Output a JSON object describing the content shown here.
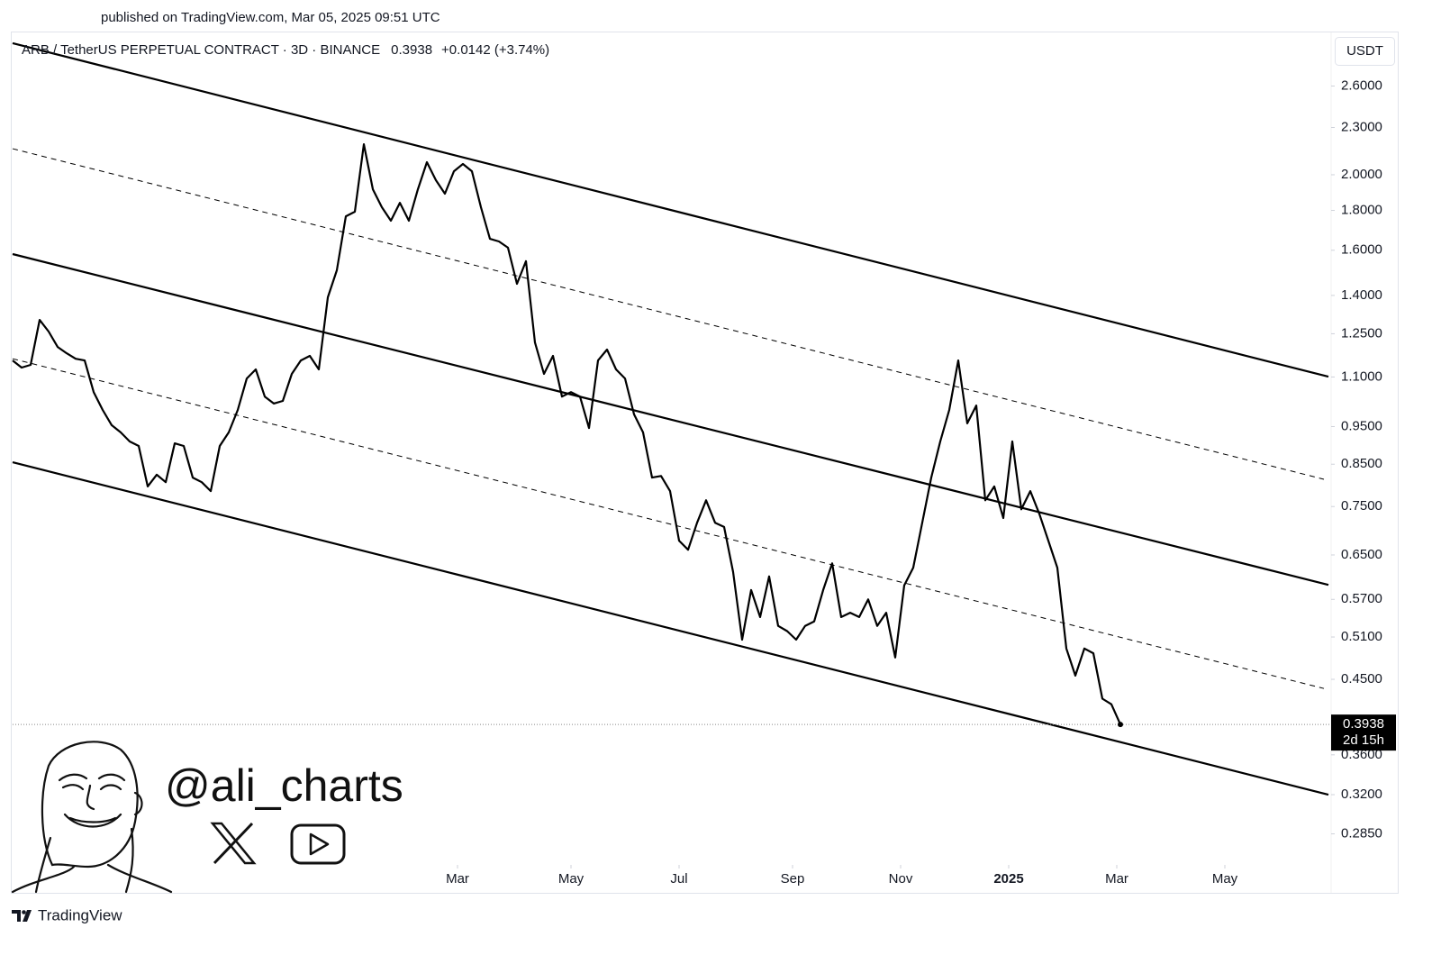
{
  "published": "published on TradingView.com, Mar 05, 2025 09:51 UTC",
  "footer": "TradingView",
  "watermark": "@ali_charts",
  "chart_data": {
    "type": "line",
    "title": "ARB / TetherUS PERPETUAL CONTRACT · 3D · BINANCE",
    "change_label": "+0.0142 (+3.74%)",
    "currency": "USDT",
    "countdown": "2d 15h",
    "log_scale": true,
    "grid": false,
    "color": "#000000",
    "xlim": [
      0,
      146.4
    ],
    "xticks": [
      {
        "value": 49.4,
        "label": "Mar"
      },
      {
        "value": 62,
        "label": "May"
      },
      {
        "value": 74,
        "label": "Jul"
      },
      {
        "value": 86.6,
        "label": "Sep"
      },
      {
        "value": 98.6,
        "label": "Nov"
      },
      {
        "value": 110.6,
        "label": "2025",
        "bold": true
      },
      {
        "value": 122.6,
        "label": "Mar"
      },
      {
        "value": 134.6,
        "label": "May"
      }
    ],
    "ylim": [
      0.26,
      3.03
    ],
    "yticks": [
      {
        "value": 2.6,
        "label": "2.6000"
      },
      {
        "value": 2.3,
        "label": "2.3000"
      },
      {
        "value": 2.0,
        "label": "2.0000"
      },
      {
        "value": 1.8,
        "label": "1.8000"
      },
      {
        "value": 1.6,
        "label": "1.6000"
      },
      {
        "value": 1.4,
        "label": "1.4000"
      },
      {
        "value": 1.25,
        "label": "1.2500"
      },
      {
        "value": 1.1,
        "label": "1.1000"
      },
      {
        "value": 0.95,
        "label": "0.9500"
      },
      {
        "value": 0.85,
        "label": "0.8500"
      },
      {
        "value": 0.75,
        "label": "0.7500"
      },
      {
        "value": 0.65,
        "label": "0.6500"
      },
      {
        "value": 0.57,
        "label": "0.5700"
      },
      {
        "value": 0.51,
        "label": "0.5100"
      },
      {
        "value": 0.45,
        "label": "0.4500"
      },
      {
        "value": 0.36,
        "label": "0.3600"
      },
      {
        "value": 0.32,
        "label": "0.3200"
      },
      {
        "value": 0.285,
        "label": "0.2850"
      }
    ],
    "values": [
      1.155,
      1.131,
      1.14,
      1.302,
      1.258,
      1.202,
      1.18,
      1.161,
      1.155,
      1.052,
      0.998,
      0.954,
      0.934,
      0.909,
      0.897,
      0.796,
      0.824,
      0.806,
      0.904,
      0.897,
      0.817,
      0.806,
      0.785,
      0.897,
      0.934,
      0.998,
      1.095,
      1.125,
      1.038,
      1.017,
      1.025,
      1.11,
      1.155,
      1.171,
      1.125,
      1.392,
      1.508,
      1.769,
      1.793,
      2.189,
      1.916,
      1.817,
      1.746,
      1.841,
      1.746,
      1.916,
      2.076,
      1.968,
      1.891,
      2.021,
      2.065,
      2.021,
      1.817,
      1.655,
      1.642,
      1.612,
      1.449,
      1.549,
      1.218,
      1.11,
      1.171,
      1.038,
      1.052,
      1.038,
      0.946,
      1.155,
      1.193,
      1.125,
      1.095,
      0.985,
      0.934,
      0.817,
      0.821,
      0.785,
      0.678,
      0.66,
      0.715,
      0.764,
      0.715,
      0.706,
      0.618,
      0.506,
      0.586,
      0.541,
      0.61,
      0.527,
      0.519,
      0.506,
      0.527,
      0.534,
      0.586,
      0.634,
      0.541,
      0.548,
      0.541,
      0.57,
      0.527,
      0.548,
      0.48,
      0.594,
      0.626,
      0.715,
      0.817,
      0.909,
      0.998,
      1.155,
      0.959,
      1.011,
      0.764,
      0.796,
      0.725,
      0.909,
      0.744,
      0.785,
      0.734,
      0.678,
      0.626,
      0.493,
      0.455,
      0.493,
      0.486,
      0.425,
      0.418,
      0.3938
    ],
    "channel_lines": [
      {
        "style": "solid",
        "x": [
          0,
          146.1
        ],
        "values": [
          2.951,
          1.101
        ]
      },
      {
        "style": "dashed",
        "x": [
          0,
          145.6
        ],
        "values": [
          2.16,
          0.813
        ]
      },
      {
        "style": "solid",
        "x": [
          0,
          146.1
        ],
        "values": [
          1.582,
          0.595
        ]
      },
      {
        "style": "dashed",
        "x": [
          0,
          145.6
        ],
        "values": [
          1.161,
          0.438
        ]
      },
      {
        "style": "solid",
        "x": [
          0,
          146.1
        ],
        "values": [
          0.855,
          0.32
        ]
      }
    ]
  }
}
